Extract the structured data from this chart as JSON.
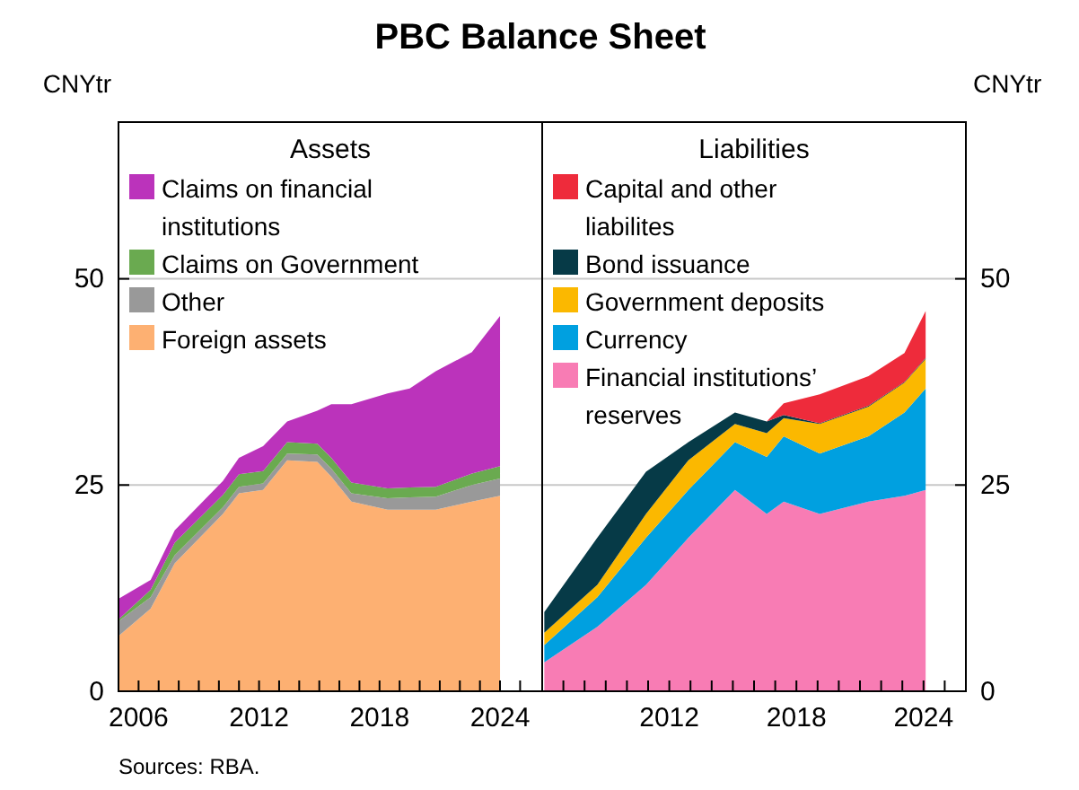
{
  "chart_data": [
    {
      "type": "area",
      "stacked": true,
      "title": "PBC Balance Sheet",
      "subtitle": "Assets",
      "ylabel": "CNYtr",
      "legend": "top left",
      "grid": "y",
      "annotations": [
        "Sources: RBA."
      ],
      "x": [
        2005.0,
        2006.6,
        2007.8,
        2010.2,
        2011.0,
        2012.2,
        2013.4,
        2014.9,
        2015.6,
        2016.6,
        2018.4,
        2019.5,
        2020.8,
        2022.6,
        2024.0
      ],
      "xlim": [
        2005,
        2026.1
      ],
      "xticks": [
        {
          "value": 2006,
          "label": "2006"
        },
        {
          "value": 2007,
          "label": null
        },
        {
          "value": 2008,
          "label": null
        },
        {
          "value": 2009,
          "label": null
        },
        {
          "value": 2010,
          "label": null
        },
        {
          "value": 2011,
          "label": null
        },
        {
          "value": 2012,
          "label": "2012"
        },
        {
          "value": 2013,
          "label": null
        },
        {
          "value": 2014,
          "label": null
        },
        {
          "value": 2015,
          "label": null
        },
        {
          "value": 2016,
          "label": null
        },
        {
          "value": 2017,
          "label": null
        },
        {
          "value": 2018,
          "label": "2018"
        },
        {
          "value": 2019,
          "label": null
        },
        {
          "value": 2020,
          "label": null
        },
        {
          "value": 2021,
          "label": null
        },
        {
          "value": 2022,
          "label": null
        },
        {
          "value": 2023,
          "label": null
        },
        {
          "value": 2024,
          "label": "2024"
        },
        {
          "value": 2025,
          "label": null
        }
      ],
      "ylim": [
        0,
        69
      ],
      "yticks": [
        0,
        25,
        50
      ],
      "series": [
        {
          "name": "Foreign assets",
          "color": "#fdb072",
          "values": [
            6.7,
            10,
            15.5,
            21.5,
            24,
            24.4,
            28,
            27.8,
            26,
            23,
            22,
            22,
            22,
            23,
            23.7
          ]
        },
        {
          "name": "Other",
          "color": "#999999",
          "values": [
            1.8,
            1.4,
            1.0,
            0.8,
            0.8,
            0.8,
            0.8,
            0.9,
            1.0,
            1.0,
            1.4,
            1.5,
            1.6,
            2.0,
            2.1
          ]
        },
        {
          "name": "Claims on Government",
          "color": "#6aaa50",
          "values": [
            0.2,
            0.9,
            1.5,
            1.5,
            1.5,
            1.5,
            1.4,
            1.3,
            1.3,
            1.3,
            1.2,
            1.2,
            1.2,
            1.4,
            1.5
          ]
        },
        {
          "name": "Claims on financial institutions",
          "color": "#bb33bb",
          "values": [
            2.5,
            1.2,
            1.5,
            1.7,
            2,
            3,
            2.5,
            4,
            6.5,
            9.5,
            11.5,
            12,
            14,
            14.7,
            18.2
          ]
        }
      ]
    },
    {
      "type": "area",
      "stacked": true,
      "subtitle": "Liabilities",
      "ylabel": "CNYtr",
      "legend": "top left",
      "grid": "y",
      "x": [
        2006.1,
        2008.6,
        2010.9,
        2012.9,
        2015.1,
        2016.6,
        2017.4,
        2019.1,
        2021.4,
        2023.1,
        2024.1
      ],
      "xlim": [
        2006,
        2026
      ],
      "xticks": [
        {
          "value": 2007,
          "label": null
        },
        {
          "value": 2008,
          "label": null
        },
        {
          "value": 2009,
          "label": null
        },
        {
          "value": 2010,
          "label": null
        },
        {
          "value": 2011,
          "label": null
        },
        {
          "value": 2012,
          "label": "2012"
        },
        {
          "value": 2013,
          "label": null
        },
        {
          "value": 2014,
          "label": null
        },
        {
          "value": 2015,
          "label": null
        },
        {
          "value": 2016,
          "label": null
        },
        {
          "value": 2017,
          "label": null
        },
        {
          "value": 2018,
          "label": "2018"
        },
        {
          "value": 2019,
          "label": null
        },
        {
          "value": 2020,
          "label": null
        },
        {
          "value": 2021,
          "label": null
        },
        {
          "value": 2022,
          "label": null
        },
        {
          "value": 2023,
          "label": null
        },
        {
          "value": 2024,
          "label": "2024"
        },
        {
          "value": 2025,
          "label": null
        }
      ],
      "ylim": [
        0,
        69
      ],
      "yticks": [
        0,
        25,
        50
      ],
      "series": [
        {
          "name": "Financial institutions’ reserves",
          "color": "#f87cb4",
          "values": [
            3.5,
            7.8,
            12.9,
            18.6,
            24.4,
            21.5,
            23,
            21.5,
            23,
            23.7,
            24.4
          ]
        },
        {
          "name": "Currency",
          "color": "#00a0e0",
          "values": [
            2.1,
            3.6,
            5.7,
            5.8,
            5.8,
            6.9,
            7.9,
            7.3,
            7.9,
            10.1,
            12.3
          ]
        },
        {
          "name": "Government deposits",
          "color": "#fbb800",
          "values": [
            1.5,
            1.5,
            2.9,
            3.6,
            2.2,
            2.9,
            2.2,
            3.6,
            3.6,
            3.6,
            3.6
          ]
        },
        {
          "name": "Bond issuance",
          "color": "#063a47",
          "values": [
            2.5,
            5.7,
            5.1,
            2.2,
            1.4,
            1.4,
            0.4,
            0.1,
            0.1,
            0.1,
            0.1
          ]
        },
        {
          "name": "Capital and other liabilites",
          "color": "#ee2b3b",
          "values": [
            0,
            0,
            0,
            0,
            0,
            0,
            1.4,
            3.5,
            3.6,
            3.5,
            5.7
          ]
        }
      ]
    }
  ]
}
